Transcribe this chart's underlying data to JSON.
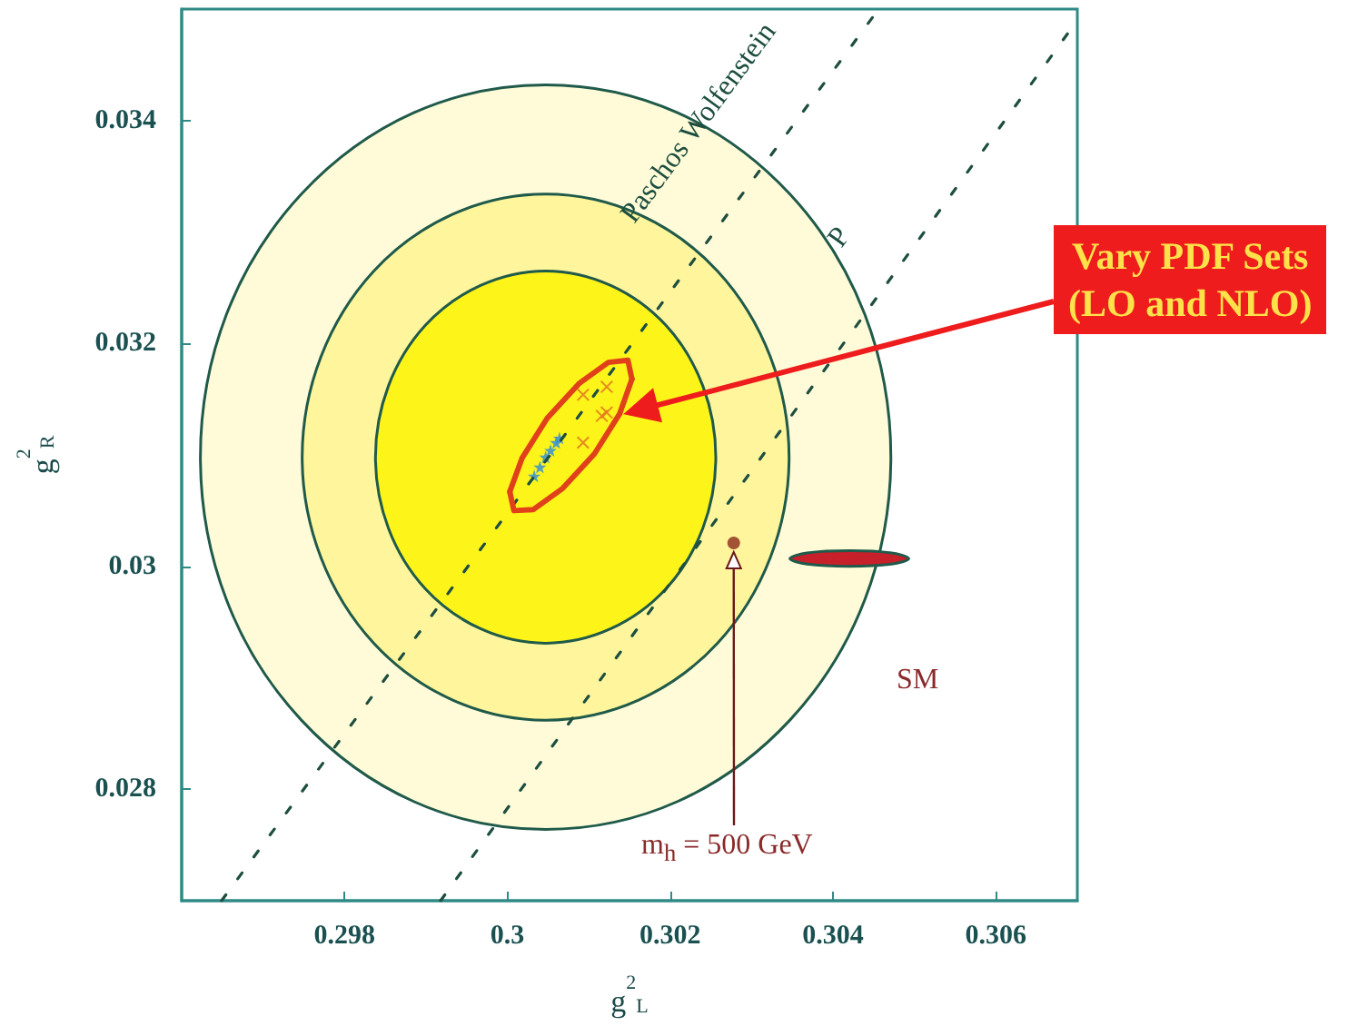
{
  "chart_data": {
    "type": "scatter",
    "xlabel": "g$^{2}$$_{L}$",
    "ylabel": "g$^{2}$$_{R}$",
    "xlim": [
      0.296,
      0.307
    ],
    "xticks": [
      0.298,
      0.3,
      0.302,
      0.304,
      0.306
    ],
    "ylim": [
      0.027,
      0.035
    ],
    "yticks": [
      0.028,
      0.03,
      0.032,
      0.034
    ],
    "grid": false,
    "series": [
      {
        "type": "area",
        "color": "#fffbd8",
        "x": [
          0.30471,
          0.30439,
          0.30347,
          0.30209,
          0.30047,
          0.29885,
          0.29747,
          0.29655,
          0.29623,
          0.29655,
          0.29747,
          0.29885,
          0.30047,
          0.30209,
          0.30347,
          0.30439
        ],
        "values": [
          0.03098,
          0.03226,
          0.03334,
          0.03407,
          0.03432,
          0.03407,
          0.03334,
          0.03226,
          0.03098,
          0.0297,
          0.02862,
          0.02789,
          0.02764,
          0.02789,
          0.02862,
          0.0297
        ]
      },
      {
        "type": "area",
        "color": "#fff59c",
        "x": [
          0.30346,
          0.30323,
          0.30258,
          0.30161,
          0.30047,
          0.29933,
          0.29836,
          0.29771,
          0.29748,
          0.29771,
          0.29836,
          0.29933,
          0.30047,
          0.30161,
          0.30258,
          0.30323
        ],
        "values": [
          0.03098,
          0.03188,
          0.03265,
          0.03316,
          0.03334,
          0.03316,
          0.03265,
          0.03188,
          0.03098,
          0.03008,
          0.02931,
          0.0288,
          0.02862,
          0.0288,
          0.02931,
          0.03008
        ]
      },
      {
        "type": "area",
        "color": "#fdf41a",
        "x": [
          0.30256,
          0.3024,
          0.30195,
          0.30127,
          0.30047,
          0.29967,
          0.29899,
          0.29854,
          0.29838,
          0.29854,
          0.29899,
          0.29967,
          0.30047,
          0.30127,
          0.30195,
          0.3024
        ],
        "values": [
          0.03098,
          0.03162,
          0.03216,
          0.03252,
          0.03265,
          0.03252,
          0.03216,
          0.03162,
          0.03098,
          0.03034,
          0.0298,
          0.02944,
          0.02931,
          0.02944,
          0.0298,
          0.03034
        ]
      },
      {
        "type": "line",
        "name": "Paschos Wolfenstein",
        "color": "#1e4e40",
        "line_style": "dashed",
        "marker": "none",
        "x": [
          0.29649,
          0.30456
        ],
        "values": [
          0.027,
          0.035
        ]
      },
      {
        "type": "line",
        "name": "P",
        "color": "#1e4e40",
        "line_style": "dashed",
        "marker": "none",
        "x": [
          0.29918,
          0.307
        ],
        "values": [
          0.027,
          0.0349
        ]
      },
      {
        "type": "line",
        "color": "#e0401a",
        "line_style": "solid",
        "marker": "none",
        "x": [
          0.30003,
          0.30018,
          0.30049,
          0.30088,
          0.30124,
          0.30148,
          0.30153
        ],
        "values": [
          0.03067,
          0.03097,
          0.03133,
          0.03164,
          0.03183,
          0.03185,
          0.03168
        ]
      },
      {
        "type": "line",
        "color": "#e0401a",
        "line_style": "solid",
        "marker": "none",
        "x": [
          0.30003,
          0.30008,
          0.30032,
          0.30068,
          0.30107,
          0.30138,
          0.30153
        ],
        "values": [
          0.03067,
          0.0305,
          0.03051,
          0.0307,
          0.03101,
          0.03137,
          0.03168
        ]
      },
      {
        "color": "#2a8ae0",
        "marker": "star",
        "x": [
          0.30033,
          0.3004,
          0.30047,
          0.30053,
          0.3006,
          0.30064
        ],
        "values": [
          0.03081,
          0.03089,
          0.03098,
          0.03104,
          0.03111,
          0.03115
        ]
      },
      {
        "color": "#e07020",
        "marker": "cross",
        "x": [
          0.30093,
          0.30122,
          0.30116,
          0.30122,
          0.30093
        ],
        "values": [
          0.03154,
          0.03161,
          0.03135,
          0.03138,
          0.03111
        ]
      },
      {
        "type": "area",
        "color": "#c8202a",
        "x": [
          0.30493,
          0.30472,
          0.3042,
          0.30368,
          0.30347,
          0.30368,
          0.3042,
          0.30472
        ],
        "values": [
          0.03007,
          0.03012,
          0.03014,
          0.03012,
          0.03007,
          0.03002,
          0.03,
          0.03002
        ]
      },
      {
        "color": "#8b2a1a",
        "marker": "circle",
        "x": [
          0.30278
        ],
        "values": [
          0.03021
        ]
      }
    ],
    "annotations": [
      "Vary PDF Sets\n(LO and NLO)",
      "m$_{h}$ = 500 GeV",
      "SM"
    ]
  }
}
